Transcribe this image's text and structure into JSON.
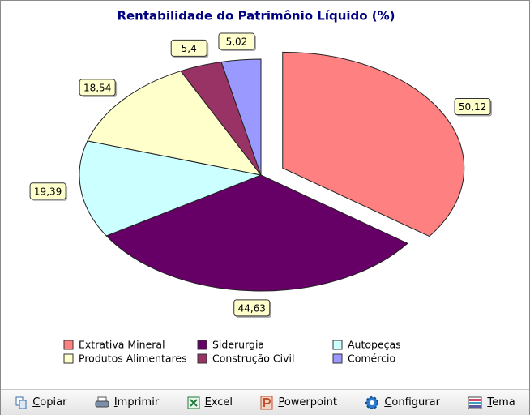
{
  "chart_data": {
    "type": "pie",
    "title": "Rentabilidade do Patrimônio Líquido (%)",
    "categories": [
      "Extrativa Mineral",
      "Siderurgia",
      "Autopeças",
      "Produtos Alimentares",
      "Construção Civil",
      "Comércio"
    ],
    "values": [
      50.12,
      44.63,
      19.39,
      18.54,
      5.4,
      5.02
    ],
    "value_labels": [
      "50,12",
      "44,63",
      "19,39",
      "18,54",
      "5,4",
      "5,02"
    ],
    "colors": [
      "#ff8080",
      "#660066",
      "#ccffff",
      "#ffffcc",
      "#993366",
      "#9999ff"
    ],
    "exploded": [
      0
    ]
  },
  "toolbar": [
    "Copiar",
    "Imprimir",
    "Excel",
    "Powerpoint",
    "Configurar",
    "Tema"
  ]
}
